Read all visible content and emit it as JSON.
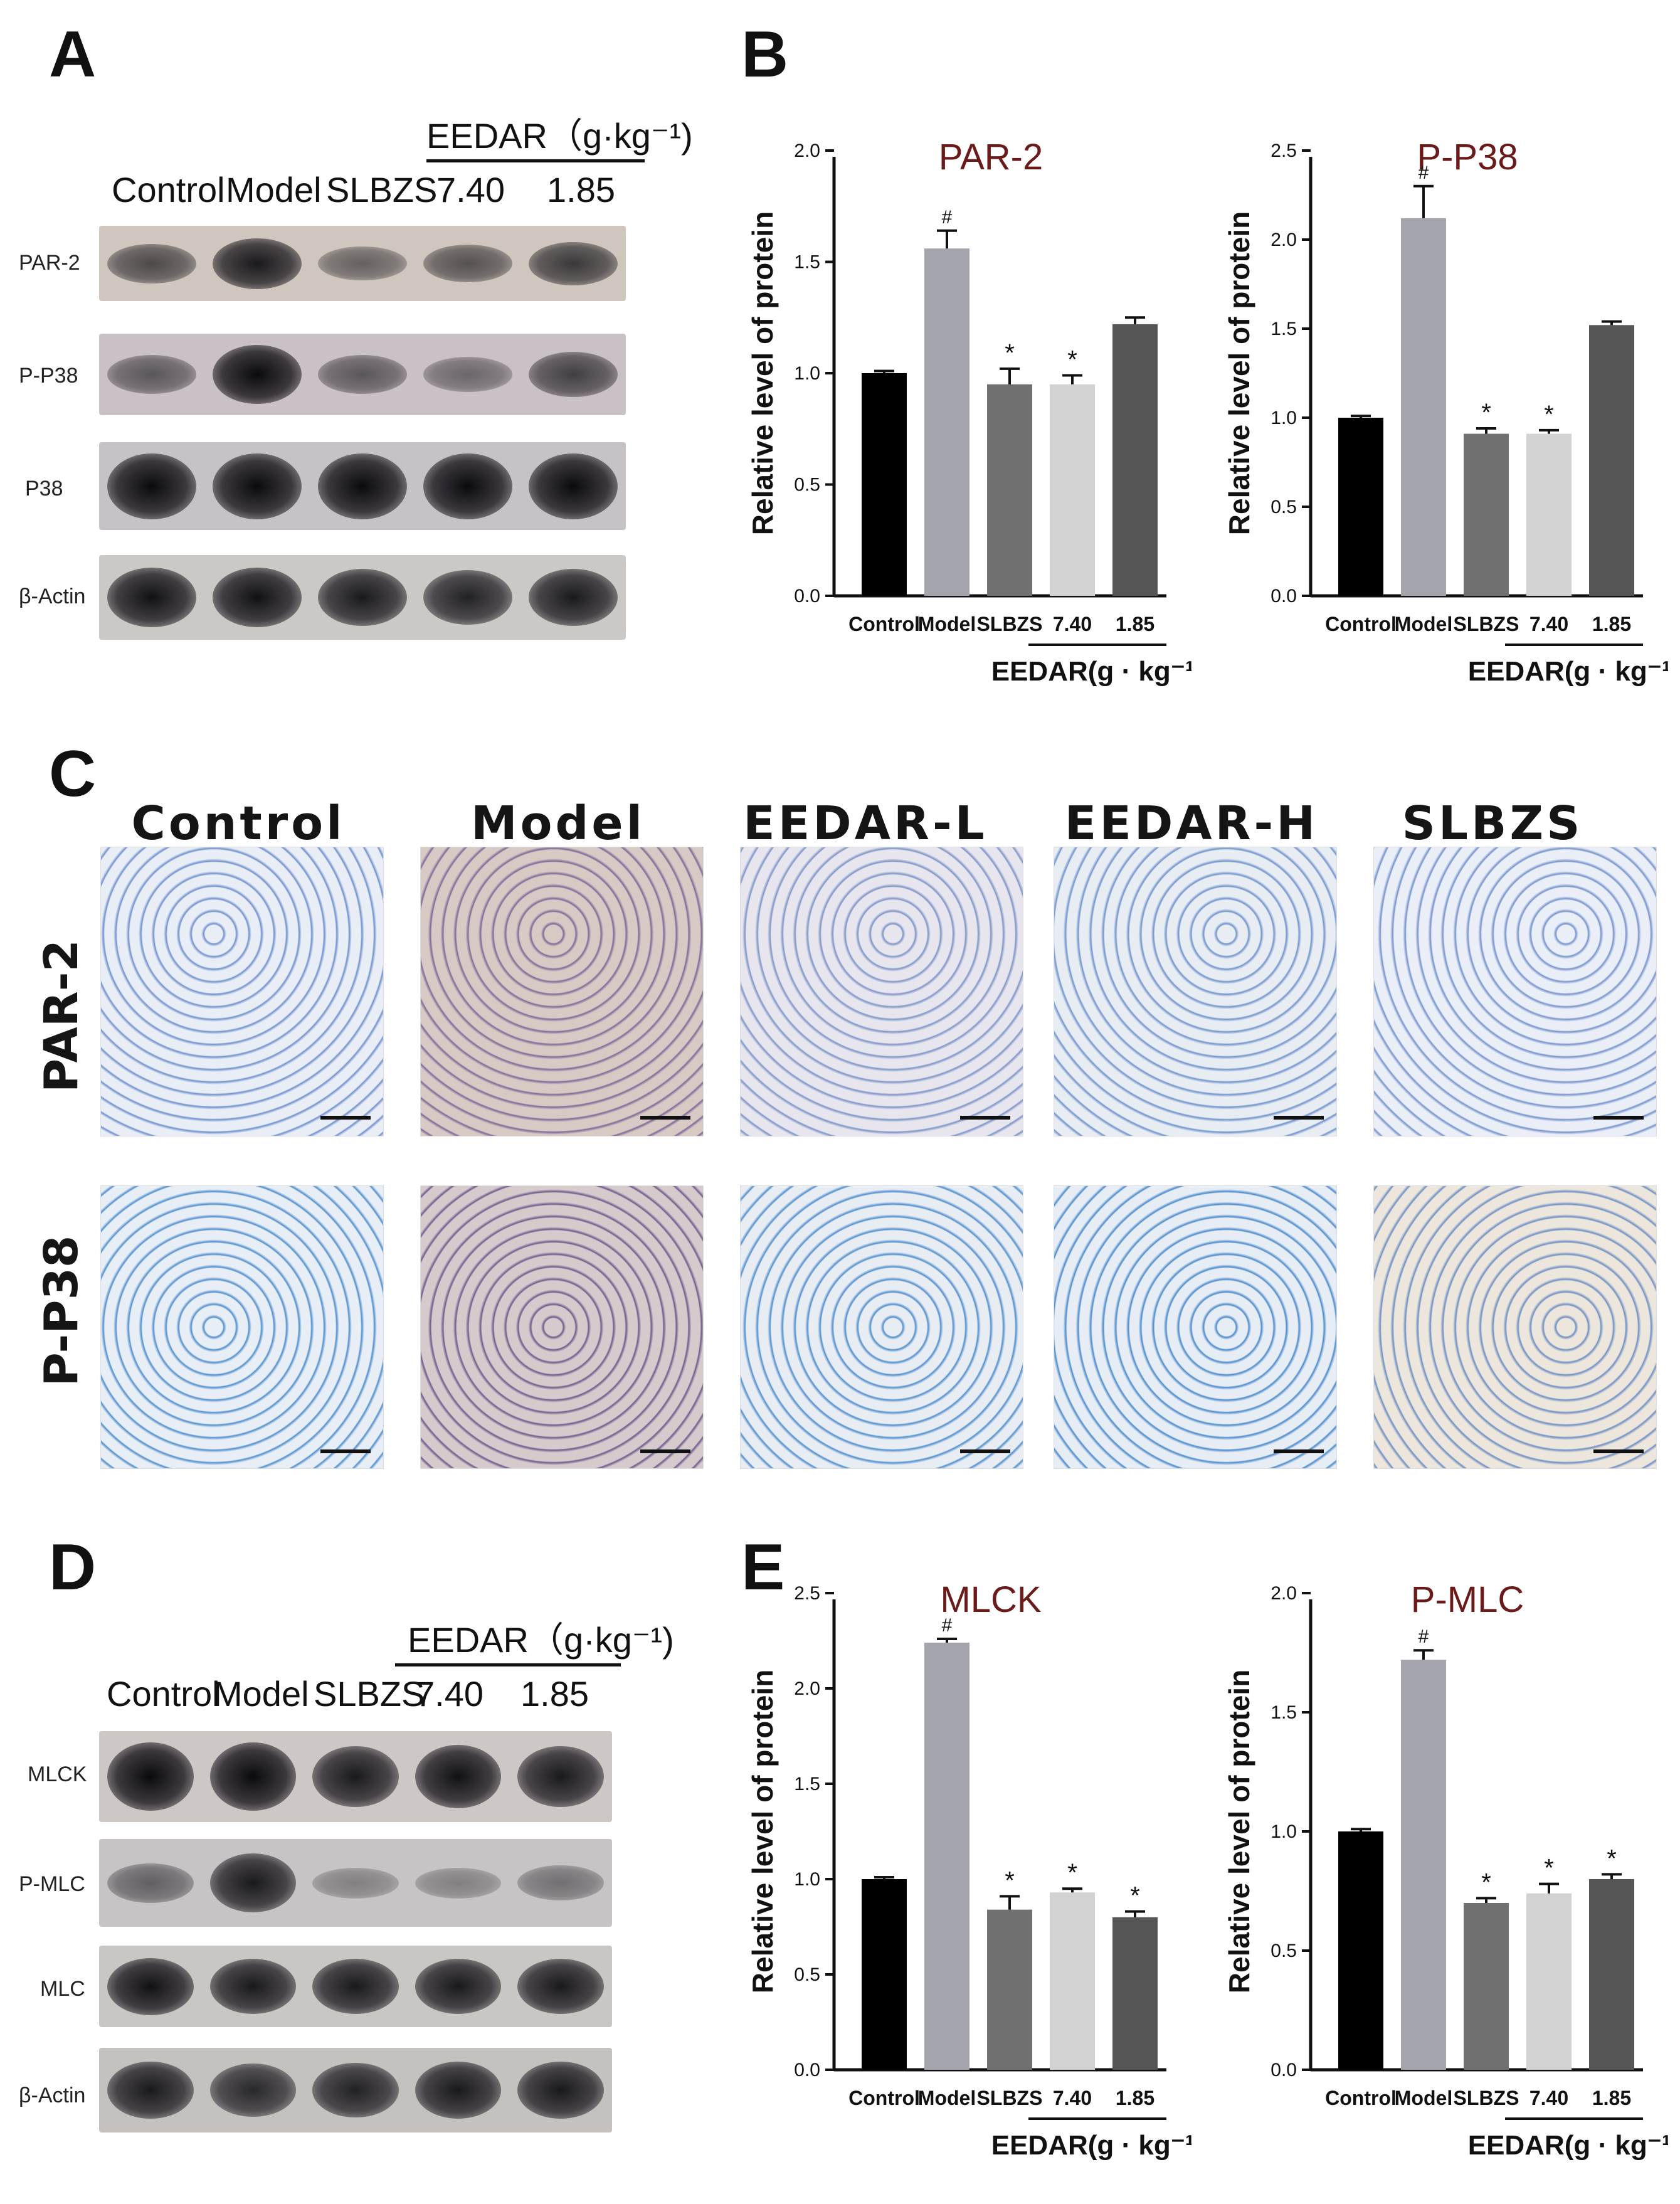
{
  "panels": {
    "A": "A",
    "B": "B",
    "C": "C",
    "D": "D",
    "E": "E"
  },
  "blot_A": {
    "group_header": "EEDAR（g·kg⁻¹)",
    "lanes": [
      "Control",
      "Model",
      "SLBZS",
      "7.40",
      "1.85"
    ],
    "rows": [
      {
        "label": "PAR-2",
        "intensity": [
          0.55,
          0.85,
          0.4,
          0.5,
          0.65
        ]
      },
      {
        "label": "P-P38",
        "intensity": [
          0.45,
          0.95,
          0.45,
          0.35,
          0.6
        ]
      },
      {
        "label": "P38",
        "intensity": [
          1.0,
          1.0,
          1.0,
          1.0,
          1.0
        ]
      },
      {
        "label": "β-Actin",
        "intensity": [
          0.9,
          0.9,
          0.85,
          0.8,
          0.85
        ]
      }
    ]
  },
  "blot_D": {
    "group_header": "EEDAR（g·kg⁻¹)",
    "lanes": [
      "Control",
      "Model",
      "SLBZS",
      "7.40",
      "1.85"
    ],
    "rows": [
      {
        "label": "MLCK",
        "intensity": [
          1.0,
          1.0,
          0.85,
          0.9,
          0.85
        ]
      },
      {
        "label": "P-MLC",
        "intensity": [
          0.4,
          0.85,
          0.2,
          0.2,
          0.3
        ]
      },
      {
        "label": "MLC",
        "intensity": [
          0.9,
          0.85,
          0.85,
          0.85,
          0.85
        ]
      },
      {
        "label": "β-Actin",
        "intensity": [
          0.85,
          0.75,
          0.8,
          0.85,
          0.85
        ]
      }
    ]
  },
  "histology": {
    "columns": [
      "Control",
      "Model",
      "EEDAR-L",
      "EEDAR-H",
      "SLBZS"
    ],
    "rows": [
      "PAR-2",
      "P-P38"
    ]
  },
  "chart_data": [
    {
      "type": "bar",
      "title": "PAR-2",
      "ylabel": "Relative level of protein",
      "categories": [
        "Control",
        "Model",
        "SLBZS",
        "7.40",
        "1.85"
      ],
      "group_label": "EEDAR(g · kg⁻¹)",
      "values": [
        1.0,
        1.56,
        0.95,
        0.95,
        1.22
      ],
      "errors": [
        0.01,
        0.08,
        0.07,
        0.04,
        0.03
      ],
      "annotations": [
        "",
        "#",
        "*",
        "*",
        ""
      ],
      "ylim": [
        0,
        2.0
      ],
      "yticks": [
        "0.0",
        "0.5",
        "1.0",
        "1.5",
        "2.0"
      ]
    },
    {
      "type": "bar",
      "title": "P-P38",
      "ylabel": "Relative level of protein",
      "categories": [
        "Control",
        "Model",
        "SLBZS",
        "7.40",
        "1.85"
      ],
      "group_label": "EEDAR(g · kg⁻¹)",
      "values": [
        1.0,
        2.12,
        0.91,
        0.91,
        1.52
      ],
      "errors": [
        0.01,
        0.18,
        0.03,
        0.02,
        0.02
      ],
      "annotations": [
        "",
        "#",
        "*",
        "*",
        ""
      ],
      "ylim": [
        0,
        2.5
      ],
      "yticks": [
        "0.0",
        "0.5",
        "1.0",
        "1.5",
        "2.0",
        "2.5"
      ]
    },
    {
      "type": "bar",
      "title": "MLCK",
      "ylabel": "Relative level of protein",
      "categories": [
        "Control",
        "Model",
        "SLBZS",
        "7.40",
        "1.85"
      ],
      "group_label": "EEDAR(g · kg⁻¹)",
      "values": [
        1.0,
        2.24,
        0.84,
        0.93,
        0.8
      ],
      "errors": [
        0.01,
        0.02,
        0.07,
        0.02,
        0.03
      ],
      "annotations": [
        "",
        "#",
        "*",
        "*",
        "*"
      ],
      "ylim": [
        0,
        2.5
      ],
      "yticks": [
        "0.0",
        "0.5",
        "1.0",
        "1.5",
        "2.0",
        "2.5"
      ]
    },
    {
      "type": "bar",
      "title": "P-MLC",
      "ylabel": "Relative level of protein",
      "categories": [
        "Control",
        "Model",
        "SLBZS",
        "7.40",
        "1.85"
      ],
      "group_label": "EEDAR(g · kg⁻¹)",
      "values": [
        1.0,
        1.72,
        0.7,
        0.74,
        0.8
      ],
      "errors": [
        0.01,
        0.04,
        0.02,
        0.04,
        0.02
      ],
      "annotations": [
        "",
        "#",
        "*",
        "*",
        "*"
      ],
      "ylim": [
        0,
        2.0
      ],
      "yticks": [
        "0.0",
        "0.5",
        "1.0",
        "1.5",
        "2.0"
      ]
    }
  ],
  "colors": {
    "bars": [
      "#000000",
      "#a4a4ac",
      "#707070",
      "#d2d2d2",
      "#555555"
    ],
    "title": "#6b1a1a"
  }
}
